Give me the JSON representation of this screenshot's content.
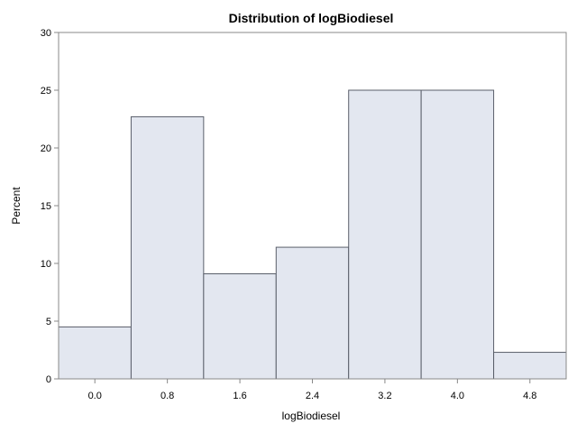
{
  "chart_data": {
    "type": "bar",
    "title": "Distribution of logBiodiesel",
    "xlabel": "logBiodiesel",
    "ylabel": "Percent",
    "ylim": [
      0,
      30
    ],
    "xlim": [
      -0.4,
      5.2
    ],
    "y_ticks": [
      0,
      5,
      10,
      15,
      20,
      25,
      30
    ],
    "x_ticks": [
      "0.0",
      "0.8",
      "1.6",
      "2.4",
      "3.2",
      "4.0",
      "4.8"
    ],
    "bin_width": 0.8,
    "bins": [
      {
        "center": 0.0,
        "value": 4.5
      },
      {
        "center": 0.8,
        "value": 22.7
      },
      {
        "center": 1.6,
        "value": 9.1
      },
      {
        "center": 2.4,
        "value": 11.4
      },
      {
        "center": 3.2,
        "value": 25.0
      },
      {
        "center": 4.0,
        "value": 25.0
      },
      {
        "center": 4.8,
        "value": 2.3
      }
    ],
    "grid": false,
    "bar_color": "#e3e7f0",
    "bar_edge_color": "#5a5f6a"
  }
}
